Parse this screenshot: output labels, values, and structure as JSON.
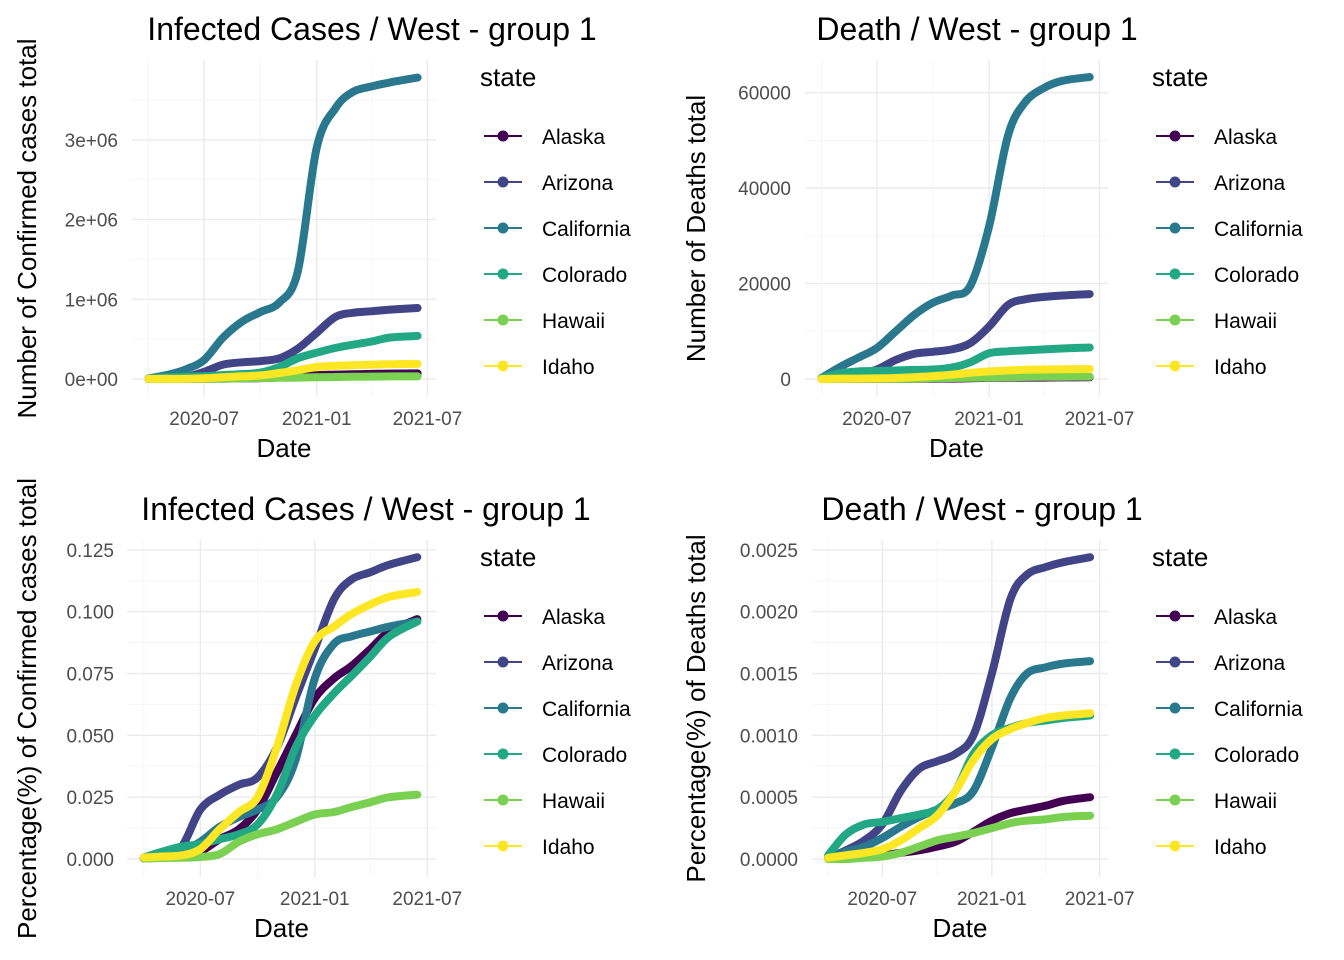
{
  "legend_title": "state",
  "states": [
    {
      "name": "Alaska",
      "color": "#440154"
    },
    {
      "name": "Arizona",
      "color": "#414487"
    },
    {
      "name": "California",
      "color": "#2A788E"
    },
    {
      "name": "Colorado",
      "color": "#22A884"
    },
    {
      "name": "Hawaii",
      "color": "#7AD151"
    },
    {
      "name": "Idaho",
      "color": "#FDE725"
    }
  ],
  "chart_data": [
    {
      "type": "line",
      "title": "Infected Cases / West - group 1",
      "xlabel": "Date",
      "ylabel": "Number of Confirmed cases total",
      "x_ticks": [
        "2020-07",
        "2021-01",
        "2021-07"
      ],
      "y_ticks": [
        "0e+00",
        "1e+06",
        "2e+06",
        "3e+06"
      ],
      "y_tick_values": [
        0,
        1000000,
        2000000,
        3000000
      ],
      "ylim": [
        0,
        3800000
      ],
      "grid": true,
      "legend_position": "right",
      "x": [
        "2020-04-01",
        "2020-05-01",
        "2020-06-01",
        "2020-07-01",
        "2020-08-01",
        "2020-09-01",
        "2020-10-01",
        "2020-11-01",
        "2020-12-01",
        "2021-01-01",
        "2021-02-01",
        "2021-03-01",
        "2021-04-01",
        "2021-05-01",
        "2021-06-15"
      ],
      "series": [
        {
          "name": "Alaska",
          "values": [
            0,
            500,
            1000,
            3000,
            5000,
            7000,
            11000,
            20000,
            38000,
            48000,
            55000,
            59000,
            64000,
            68000,
            70000
          ]
        },
        {
          "name": "Arizona",
          "values": [
            1500,
            9000,
            24000,
            90000,
            180000,
            210000,
            225000,
            260000,
            380000,
            580000,
            780000,
            830000,
            850000,
            870000,
            890000
          ]
        },
        {
          "name": "California",
          "values": [
            8000,
            50000,
            120000,
            240000,
            520000,
            720000,
            840000,
            960000,
            1350000,
            2900000,
            3400000,
            3600000,
            3670000,
            3720000,
            3780000
          ]
        },
        {
          "name": "Colorado",
          "values": [
            3000,
            20000,
            30000,
            36000,
            50000,
            62000,
            80000,
            150000,
            260000,
            330000,
            390000,
            430000,
            470000,
            520000,
            540000
          ]
        },
        {
          "name": "Hawaii",
          "values": [
            0,
            500,
            700,
            1000,
            2000,
            8000,
            12000,
            15000,
            18000,
            22000,
            25000,
            28000,
            30000,
            32000,
            33000
          ]
        },
        {
          "name": "Idaho",
          "values": [
            1000,
            2000,
            3000,
            9000,
            22000,
            34000,
            45000,
            75000,
            110000,
            150000,
            165000,
            172000,
            180000,
            185000,
            190000
          ]
        }
      ]
    },
    {
      "type": "line",
      "title": "Death / West - group 1",
      "xlabel": "Date",
      "ylabel": "Number of Deaths total",
      "x_ticks": [
        "2020-07",
        "2021-01",
        "2021-07"
      ],
      "y_ticks": [
        "0",
        "20000",
        "40000",
        "60000"
      ],
      "y_tick_values": [
        0,
        20000,
        40000,
        60000
      ],
      "ylim": [
        0,
        63500
      ],
      "grid": true,
      "legend_position": "right",
      "x": [
        "2020-04-01",
        "2020-05-01",
        "2020-06-01",
        "2020-07-01",
        "2020-08-01",
        "2020-09-01",
        "2020-10-01",
        "2020-11-01",
        "2020-12-01",
        "2021-01-01",
        "2021-02-01",
        "2021-03-01",
        "2021-04-01",
        "2021-05-01",
        "2021-06-15"
      ],
      "series": [
        {
          "name": "Alaska",
          "values": [
            0,
            10,
            20,
            20,
            30,
            40,
            60,
            90,
            150,
            230,
            270,
            290,
            300,
            330,
            350
          ]
        },
        {
          "name": "Arizona",
          "values": [
            50,
            500,
            1100,
            2000,
            4000,
            5300,
            5700,
            6200,
            7500,
            11000,
            15500,
            16700,
            17200,
            17500,
            17800
          ]
        },
        {
          "name": "California",
          "values": [
            200,
            2500,
            4500,
            6500,
            10000,
            13500,
            16000,
            17500,
            19500,
            32000,
            51000,
            58000,
            61000,
            62500,
            63300
          ]
        },
        {
          "name": "Colorado",
          "values": [
            200,
            1200,
            1600,
            1700,
            1800,
            1900,
            2000,
            2400,
            3500,
            5400,
            5800,
            6000,
            6200,
            6400,
            6600
          ]
        },
        {
          "name": "Hawaii",
          "values": [
            0,
            10,
            20,
            20,
            30,
            60,
            150,
            200,
            260,
            300,
            380,
            450,
            470,
            480,
            500
          ]
        },
        {
          "name": "Idaho",
          "values": [
            10,
            80,
            90,
            120,
            200,
            400,
            600,
            900,
            1300,
            1600,
            1800,
            1950,
            2000,
            2050,
            2100
          ]
        }
      ]
    },
    {
      "type": "line",
      "title": "Infected Cases / West - group 1",
      "xlabel": "Date",
      "ylabel": "Percentage(%) of Confirmed cases total",
      "x_ticks": [
        "2020-07",
        "2021-01",
        "2021-07"
      ],
      "y_ticks": [
        "0.000",
        "0.025",
        "0.050",
        "0.075",
        "0.100",
        "0.125"
      ],
      "y_tick_values": [
        0,
        0.025,
        0.05,
        0.075,
        0.1,
        0.125
      ],
      "ylim": [
        0,
        0.1225
      ],
      "grid": true,
      "legend_position": "right",
      "x": [
        "2020-04-01",
        "2020-05-01",
        "2020-06-01",
        "2020-07-01",
        "2020-08-01",
        "2020-09-01",
        "2020-10-01",
        "2020-11-01",
        "2020-12-01",
        "2021-01-01",
        "2021-02-01",
        "2021-03-01",
        "2021-04-01",
        "2021-05-01",
        "2021-06-15"
      ],
      "series": [
        {
          "name": "Alaska",
          "values": [
            0.0003,
            0.0006,
            0.001,
            0.003,
            0.008,
            0.012,
            0.02,
            0.035,
            0.05,
            0.065,
            0.073,
            0.078,
            0.085,
            0.092,
            0.097
          ]
        },
        {
          "name": "Arizona",
          "values": [
            0.0002,
            0.001,
            0.005,
            0.02,
            0.026,
            0.03,
            0.033,
            0.045,
            0.065,
            0.085,
            0.105,
            0.113,
            0.116,
            0.119,
            0.122
          ]
        },
        {
          "name": "California",
          "values": [
            0.0002,
            0.001,
            0.003,
            0.007,
            0.013,
            0.017,
            0.02,
            0.025,
            0.04,
            0.073,
            0.087,
            0.09,
            0.092,
            0.094,
            0.096
          ]
        },
        {
          "name": "Colorado",
          "values": [
            0.0006,
            0.003,
            0.005,
            0.006,
            0.008,
            0.01,
            0.014,
            0.026,
            0.045,
            0.058,
            0.067,
            0.074,
            0.082,
            0.09,
            0.096
          ]
        },
        {
          "name": "Hawaii",
          "values": [
            0.0002,
            0.0004,
            0.0005,
            0.0008,
            0.002,
            0.007,
            0.01,
            0.012,
            0.015,
            0.018,
            0.019,
            0.021,
            0.023,
            0.025,
            0.026
          ]
        },
        {
          "name": "Idaho",
          "values": [
            0.0006,
            0.001,
            0.0015,
            0.004,
            0.012,
            0.019,
            0.025,
            0.045,
            0.07,
            0.088,
            0.094,
            0.099,
            0.103,
            0.106,
            0.108
          ]
        }
      ]
    },
    {
      "type": "line",
      "title": "Death / West - group 1",
      "xlabel": "Date",
      "ylabel": "Percentage(%) of Deaths total",
      "x_ticks": [
        "2020-07",
        "2021-01",
        "2021-07"
      ],
      "y_ticks": [
        "0.0000",
        "0.0005",
        "0.0010",
        "0.0015",
        "0.0020",
        "0.0025"
      ],
      "y_tick_values": [
        0,
        0.0005,
        0.001,
        0.0015,
        0.002,
        0.0025
      ],
      "ylim": [
        0,
        0.00245
      ],
      "grid": true,
      "legend_position": "right",
      "x": [
        "2020-04-01",
        "2020-05-01",
        "2020-06-01",
        "2020-07-01",
        "2020-08-01",
        "2020-09-01",
        "2020-10-01",
        "2020-11-01",
        "2020-12-01",
        "2021-01-01",
        "2021-02-01",
        "2021-03-01",
        "2021-04-01",
        "2021-05-01",
        "2021-06-15"
      ],
      "series": [
        {
          "name": "Alaska",
          "values": [
            1e-05,
            1e-05,
            2e-05,
            3e-05,
            5e-05,
            7e-05,
            0.0001,
            0.00014,
            0.00022,
            0.00031,
            0.00037,
            0.0004,
            0.00043,
            0.00047,
            0.0005
          ]
        },
        {
          "name": "Arizona",
          "values": [
            1e-05,
            7e-05,
            0.00015,
            0.00028,
            0.00055,
            0.00073,
            0.00079,
            0.00085,
            0.001,
            0.0015,
            0.0021,
            0.0023,
            0.00236,
            0.0024,
            0.00244
          ]
        },
        {
          "name": "California",
          "values": [
            1e-05,
            6e-05,
            0.0001,
            0.00017,
            0.00026,
            0.00034,
            0.0004,
            0.00045,
            0.00055,
            0.0009,
            0.0013,
            0.0015,
            0.00155,
            0.00158,
            0.0016
          ]
        },
        {
          "name": "Colorado",
          "values": [
            3e-05,
            0.0002,
            0.00028,
            0.0003,
            0.00033,
            0.00036,
            0.0004,
            0.00055,
            0.00085,
            0.001,
            0.00106,
            0.0011,
            0.00112,
            0.00114,
            0.00116
          ]
        },
        {
          "name": "Hawaii",
          "values": [
            0.0,
            0.0,
            1e-05,
            2e-05,
            5e-05,
            0.0001,
            0.00015,
            0.00018,
            0.00021,
            0.00025,
            0.00029,
            0.00031,
            0.00032,
            0.00034,
            0.00035
          ]
        },
        {
          "name": "Idaho",
          "values": [
            1e-05,
            3e-05,
            5e-05,
            8e-05,
            0.00015,
            0.00025,
            0.00035,
            0.00055,
            0.0008,
            0.00097,
            0.00105,
            0.0011,
            0.00114,
            0.00116,
            0.00118
          ]
        }
      ]
    }
  ]
}
